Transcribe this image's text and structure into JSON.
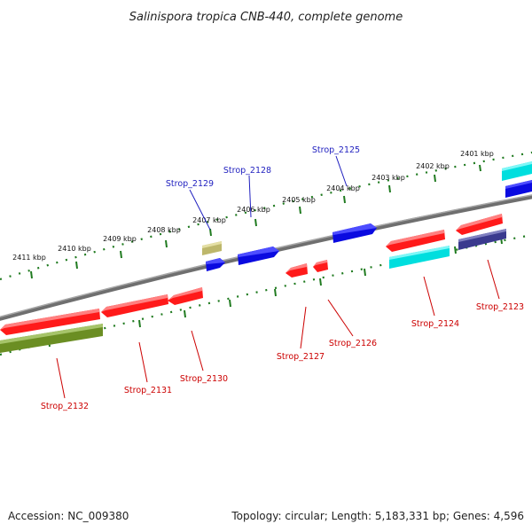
{
  "title": "Salinispora tropica CNB-440, complete genome",
  "footer": {
    "accession": "Accession: NC_009380",
    "topology": "Topology: circular; Length: 5,183,331 bp; Genes: 4,596"
  },
  "colors": {
    "backbone": "#808080",
    "tick": "#1f7a1f",
    "label_forward": "#1f1fbf",
    "label_reverse": "#cc0000"
  },
  "kbp_labels": [
    "2401 kbp",
    "2402 kbp",
    "2403 kbp",
    "2404 kbp",
    "2405 kbp",
    "2406 kbp",
    "2407 kbp",
    "2408 kbp",
    "2409 kbp",
    "2410 kbp",
    "2411 kbp"
  ],
  "genes": [
    {
      "name": "Strop_2125",
      "strand": "forward",
      "color": "#0a0ae0"
    },
    {
      "name": "Strop_2128",
      "strand": "forward",
      "color": "#0a0ae0"
    },
    {
      "name": "Strop_2129",
      "strand": "forward",
      "color": "#0a0ae0"
    },
    {
      "name": "Strop_2123",
      "strand": "reverse",
      "color": "#ff1a1a"
    },
    {
      "name": "Strop_2124",
      "strand": "reverse",
      "color": "#ff1a1a"
    },
    {
      "name": "Strop_2126",
      "strand": "reverse",
      "color": "#ff1a1a"
    },
    {
      "name": "Strop_2127",
      "strand": "reverse",
      "color": "#ff1a1a"
    },
    {
      "name": "Strop_2130",
      "strand": "reverse",
      "color": "#ff1a1a"
    },
    {
      "name": "Strop_2131",
      "strand": "reverse",
      "color": "#ff1a1a"
    },
    {
      "name": "Strop_2132",
      "strand": "reverse",
      "color": "#ff1a1a"
    }
  ]
}
